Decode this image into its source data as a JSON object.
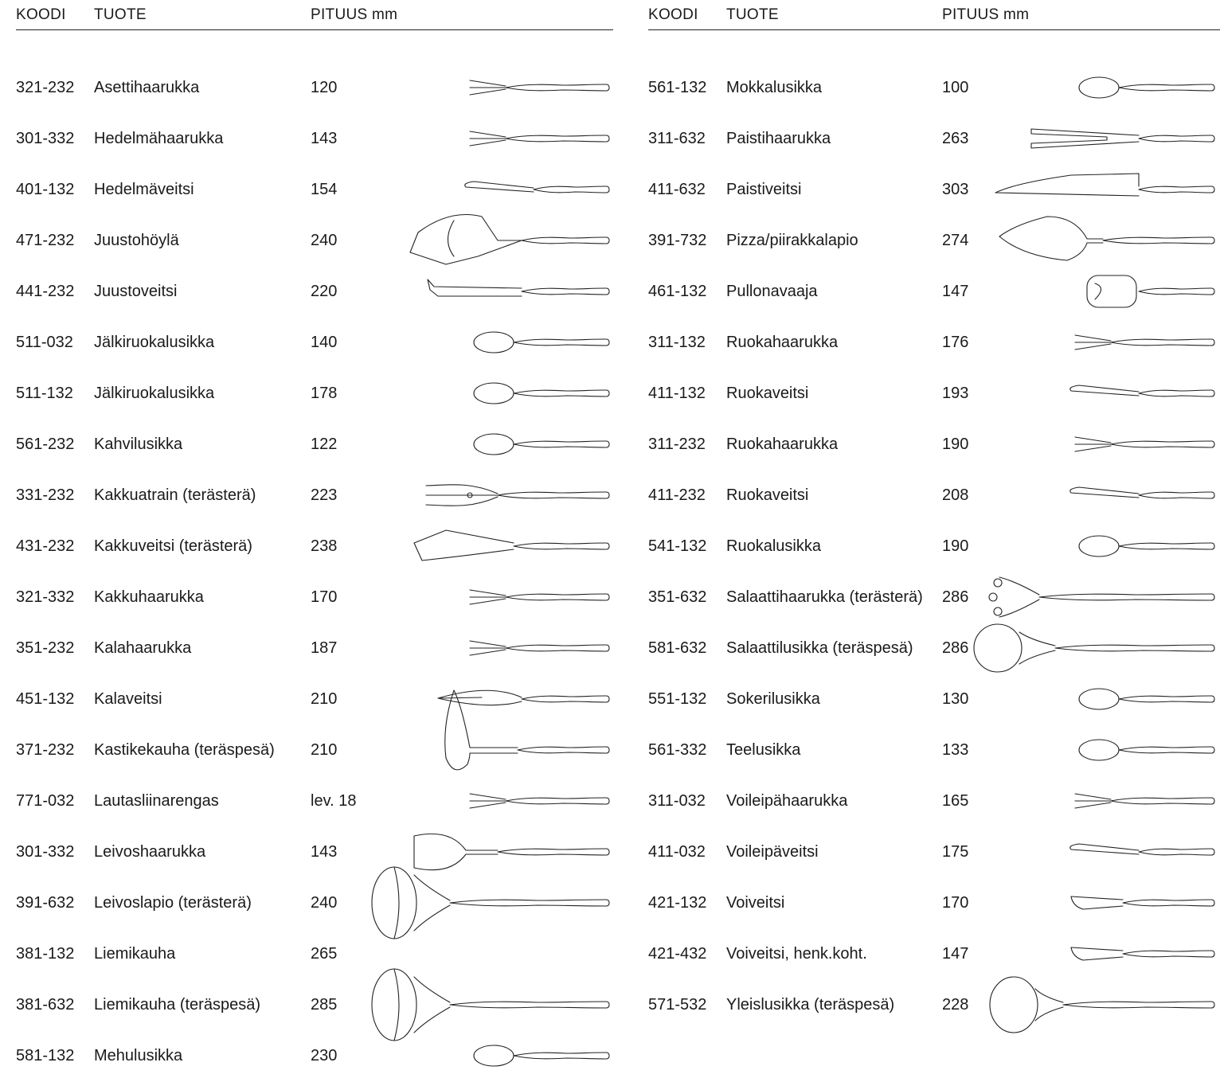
{
  "headers": {
    "code": "KOODI",
    "product": "TUOTE",
    "length": "PITUUS mm"
  },
  "left": [
    {
      "code": "321-232",
      "name": "Asettihaarukka",
      "length": "120",
      "icon": "fork-icon"
    },
    {
      "code": "301-332",
      "name": "Hedelmähaarukka",
      "length": "143",
      "icon": "fork-icon"
    },
    {
      "code": "401-132",
      "name": "Hedelmäveitsi",
      "length": "154",
      "icon": "knife-icon"
    },
    {
      "code": "471-232",
      "name": "Juustohöylä",
      "length": "240",
      "icon": "cheese-slicer-icon"
    },
    {
      "code": "441-232",
      "name": "Juustoveitsi",
      "length": "220",
      "icon": "cheese-knife-icon"
    },
    {
      "code": "511-032",
      "name": "Jälkiruokalusikka",
      "length": "140",
      "icon": "spoon-icon"
    },
    {
      "code": "511-132",
      "name": "Jälkiruokalusikka",
      "length": "178",
      "icon": "spoon-icon"
    },
    {
      "code": "561-232",
      "name": "Kahvilusikka",
      "length": "122",
      "icon": "spoon-icon"
    },
    {
      "code": "331-232",
      "name": "Kakkuatrain (terästerä)",
      "length": "223",
      "icon": "cake-fork-icon"
    },
    {
      "code": "431-232",
      "name": "Kakkuveitsi (terästerä)",
      "length": "238",
      "icon": "cake-knife-icon"
    },
    {
      "code": "321-332",
      "name": "Kakkuhaarukka",
      "length": "170",
      "icon": "fork-icon"
    },
    {
      "code": "351-232",
      "name": "Kalahaarukka",
      "length": "187",
      "icon": "fork-icon"
    },
    {
      "code": "451-132",
      "name": "Kalaveitsi",
      "length": "210",
      "icon": "fish-knife-icon"
    },
    {
      "code": "371-232",
      "name": "Kastikekauha (teräspesä)",
      "length": "210",
      "icon": "sauce-ladle-icon"
    },
    {
      "code": "771-032",
      "name": "Lautasliinarengas",
      "length": "lev. 18",
      "icon": "fork-icon"
    },
    {
      "code": "301-332",
      "name": "Leivoshaarukka",
      "length": "143",
      "icon": "pastry-server-icon"
    },
    {
      "code": "391-632",
      "name": "Leivoslapio (terästerä)",
      "length": "240",
      "icon": "ladle-icon"
    },
    {
      "code": "381-132",
      "name": "Liemikauha",
      "length": "265",
      "icon": "none"
    },
    {
      "code": "381-632",
      "name": "Liemikauha (teräspesä)",
      "length": "285",
      "icon": "ladle-icon"
    },
    {
      "code": "581-132",
      "name": "Mehulusikka",
      "length": "230",
      "icon": "spoon-icon"
    }
  ],
  "right": [
    {
      "code": "561-132",
      "name": "Mokkalusikka",
      "length": "100",
      "icon": "spoon-icon"
    },
    {
      "code": "311-632",
      "name": "Paistihaarukka",
      "length": "263",
      "icon": "carving-fork-icon"
    },
    {
      "code": "411-632",
      "name": "Paistiveitsi",
      "length": "303",
      "icon": "carving-knife-icon"
    },
    {
      "code": "391-732",
      "name": "Pizza/piirakkalapio",
      "length": "274",
      "icon": "pie-server-icon"
    },
    {
      "code": "461-132",
      "name": "Pullonavaaja",
      "length": "147",
      "icon": "bottle-opener-icon"
    },
    {
      "code": "311-132",
      "name": "Ruokahaarukka",
      "length": "176",
      "icon": "fork-icon"
    },
    {
      "code": "411-132",
      "name": "Ruokaveitsi",
      "length": "193",
      "icon": "knife-icon"
    },
    {
      "code": "311-232",
      "name": "Ruokahaarukka",
      "length": "190",
      "icon": "fork-icon"
    },
    {
      "code": "411-232",
      "name": "Ruokaveitsi",
      "length": "208",
      "icon": "knife-icon"
    },
    {
      "code": "541-132",
      "name": "Ruokalusikka",
      "length": "190",
      "icon": "spoon-icon"
    },
    {
      "code": "351-632",
      "name": "Salaattihaarukka (terästerä)",
      "length": "286",
      "icon": "salad-fork-icon"
    },
    {
      "code": "581-632",
      "name": "Salaattilusikka (teräspesä)",
      "length": "286",
      "icon": "salad-spoon-icon"
    },
    {
      "code": "551-132",
      "name": "Sokerilusikka",
      "length": "130",
      "icon": "spoon-icon"
    },
    {
      "code": "561-332",
      "name": "Teelusikka",
      "length": "133",
      "icon": "spoon-icon"
    },
    {
      "code": "311-032",
      "name": "Voileipähaarukka",
      "length": "165",
      "icon": "fork-icon"
    },
    {
      "code": "411-032",
      "name": "Voileipäveitsi",
      "length": "175",
      "icon": "knife-icon"
    },
    {
      "code": "421-132",
      "name": "Voiveitsi",
      "length": "170",
      "icon": "butter-knife-icon"
    },
    {
      "code": "421-432",
      "name": "Voiveitsi, henk.koht.",
      "length": "147",
      "icon": "butter-knife-icon"
    },
    {
      "code": "571-532",
      "name": "Yleislusikka (teräspesä)",
      "length": "228",
      "icon": "serving-spoon-icon"
    }
  ]
}
